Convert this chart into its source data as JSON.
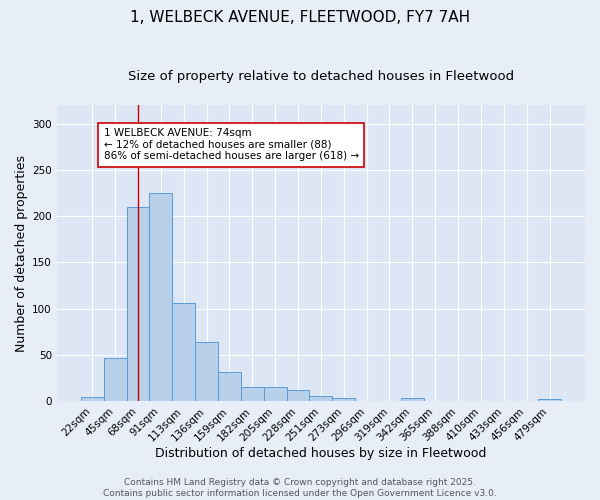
{
  "title_line1": "1, WELBECK AVENUE, FLEETWOOD, FY7 7AH",
  "title_line2": "Size of property relative to detached houses in Fleetwood",
  "xlabel": "Distribution of detached houses by size in Fleetwood",
  "ylabel": "Number of detached properties",
  "categories": [
    "22sqm",
    "45sqm",
    "68sqm",
    "91sqm",
    "113sqm",
    "136sqm",
    "159sqm",
    "182sqm",
    "205sqm",
    "228sqm",
    "251sqm",
    "273sqm",
    "296sqm",
    "319sqm",
    "342sqm",
    "365sqm",
    "388sqm",
    "410sqm",
    "433sqm",
    "456sqm",
    "479sqm"
  ],
  "values": [
    4,
    47,
    210,
    225,
    106,
    64,
    32,
    15,
    15,
    12,
    6,
    3,
    0,
    0,
    3,
    0,
    0,
    0,
    0,
    0,
    2
  ],
  "bar_color": "#b8d0ea",
  "bar_edge_color": "#5b9bd5",
  "plot_bg_color": "#dce6f5",
  "fig_bg_color": "#e8eef8",
  "grid_color": "#ffffff",
  "ylim": [
    0,
    320
  ],
  "yticks": [
    0,
    50,
    100,
    150,
    200,
    250,
    300
  ],
  "property_bin_index": 2,
  "vline_color": "#cc0000",
  "annotation_text": "1 WELBECK AVENUE: 74sqm\n← 12% of detached houses are smaller (88)\n86% of semi-detached houses are larger (618) →",
  "annotation_box_color": "#ffffff",
  "annotation_box_edge": "#cc0000",
  "footer_text": "Contains HM Land Registry data © Crown copyright and database right 2025.\nContains public sector information licensed under the Open Government Licence v3.0.",
  "title_fontsize": 11,
  "subtitle_fontsize": 9.5,
  "axis_label_fontsize": 9,
  "tick_fontsize": 7.5,
  "annotation_fontsize": 7.5,
  "footer_fontsize": 6.5
}
